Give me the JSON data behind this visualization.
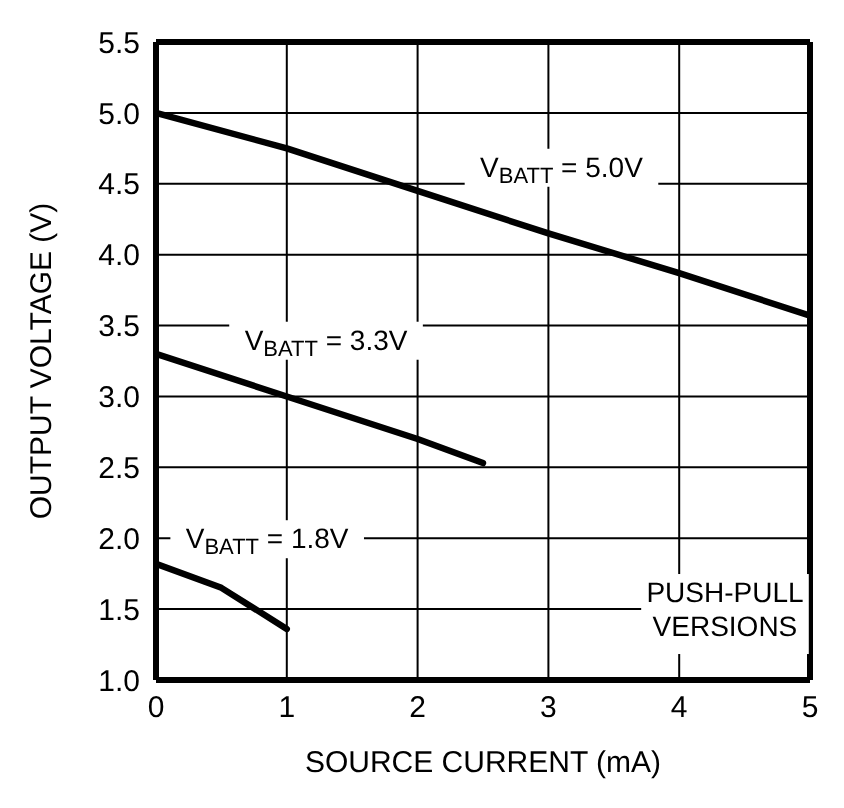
{
  "chart_data": {
    "type": "line",
    "xlabel": "SOURCE CURRENT (mA)",
    "ylabel": "OUTPUT VOLTAGE (V)",
    "xlim": [
      0,
      5
    ],
    "xticks": [
      0,
      1,
      2,
      3,
      4,
      5
    ],
    "ylim": [
      1.0,
      5.5
    ],
    "yticks": [
      {
        "value": 1.0,
        "label": "1.0"
      },
      {
        "value": 1.5,
        "label": "1.5"
      },
      {
        "value": 2.0,
        "label": "2.0"
      },
      {
        "value": 2.5,
        "label": "2.5"
      },
      {
        "value": 3.0,
        "label": "3.0"
      },
      {
        "value": 3.5,
        "label": "3.5"
      },
      {
        "value": 4.0,
        "label": "4.0"
      },
      {
        "value": 4.5,
        "label": "4.5"
      },
      {
        "value": 5.0,
        "label": "5.0"
      },
      {
        "value": 5.5,
        "label": "5.5"
      }
    ],
    "grid": true,
    "legend": false,
    "marker": "none",
    "line_style": "solid",
    "annotations": [
      "PUSH-PULL VERSIONS"
    ],
    "series": [
      {
        "name": "V$_{BATT}$ = 5.0V",
        "color": "#000000",
        "x": [
          0,
          1,
          2,
          3,
          4,
          5
        ],
        "values": [
          5.0,
          4.75,
          4.45,
          4.15,
          3.87,
          3.57
        ]
      },
      {
        "name": "V$_{BATT}$ = 3.3V",
        "color": "#000000",
        "x": [
          0,
          1,
          2,
          2.5
        ],
        "values": [
          3.3,
          3.0,
          2.7,
          2.53
        ]
      },
      {
        "name": "V$_{BATT}$ = 1.8V",
        "color": "#000000",
        "x": [
          0,
          0.5,
          1
        ],
        "values": [
          1.82,
          1.65,
          1.36
        ]
      }
    ]
  }
}
